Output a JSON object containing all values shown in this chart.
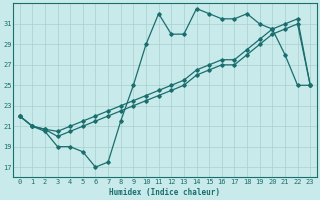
{
  "xlabel": "Humidex (Indice chaleur)",
  "bg_color": "#c8eaea",
  "grid_color": "#aacece",
  "line_color": "#1a6e6e",
  "xlim": [
    -0.5,
    23.5
  ],
  "ylim": [
    16.0,
    33.0
  ],
  "yticks": [
    17,
    19,
    21,
    23,
    25,
    27,
    29,
    31
  ],
  "xticks": [
    0,
    1,
    2,
    3,
    4,
    5,
    6,
    7,
    8,
    9,
    10,
    11,
    12,
    13,
    14,
    15,
    16,
    17,
    18,
    19,
    20,
    21,
    22,
    23
  ],
  "line1_x": [
    0,
    1,
    2,
    3,
    4,
    5,
    6,
    7,
    8,
    9,
    10,
    11,
    12,
    13,
    14,
    15,
    16,
    17,
    18,
    19,
    20,
    21,
    22,
    23
  ],
  "line1_y": [
    22.0,
    21.0,
    20.5,
    19.0,
    19.0,
    18.5,
    17.0,
    17.5,
    21.5,
    25.0,
    29.0,
    32.0,
    30.0,
    30.0,
    32.5,
    32.0,
    31.5,
    31.5,
    32.0,
    31.0,
    30.5,
    28.0,
    25.0,
    25.0
  ],
  "line2_x": [
    0,
    1,
    2,
    3,
    4,
    5,
    6,
    7,
    8,
    9,
    10,
    11,
    12,
    13,
    14,
    15,
    16,
    17,
    18,
    19,
    20,
    21,
    22,
    23
  ],
  "line2_y": [
    22.0,
    21.0,
    20.7,
    20.5,
    21.0,
    21.5,
    22.0,
    22.5,
    23.0,
    23.5,
    24.0,
    24.5,
    25.0,
    25.5,
    26.5,
    27.0,
    27.5,
    27.5,
    28.5,
    29.5,
    30.5,
    31.0,
    31.5,
    25.0
  ],
  "line3_x": [
    0,
    1,
    2,
    3,
    4,
    5,
    6,
    7,
    8,
    9,
    10,
    11,
    12,
    13,
    14,
    15,
    16,
    17,
    18,
    19,
    20,
    21,
    22,
    23
  ],
  "line3_y": [
    22.0,
    21.0,
    20.7,
    20.0,
    20.5,
    21.0,
    21.5,
    22.0,
    22.5,
    23.0,
    23.5,
    24.0,
    24.5,
    25.0,
    26.0,
    26.5,
    27.0,
    27.0,
    28.0,
    29.0,
    30.0,
    30.5,
    31.0,
    25.0
  ],
  "xlabel_fontsize": 5.5,
  "tick_fontsize": 5.0,
  "lw": 0.9,
  "ms": 1.8
}
